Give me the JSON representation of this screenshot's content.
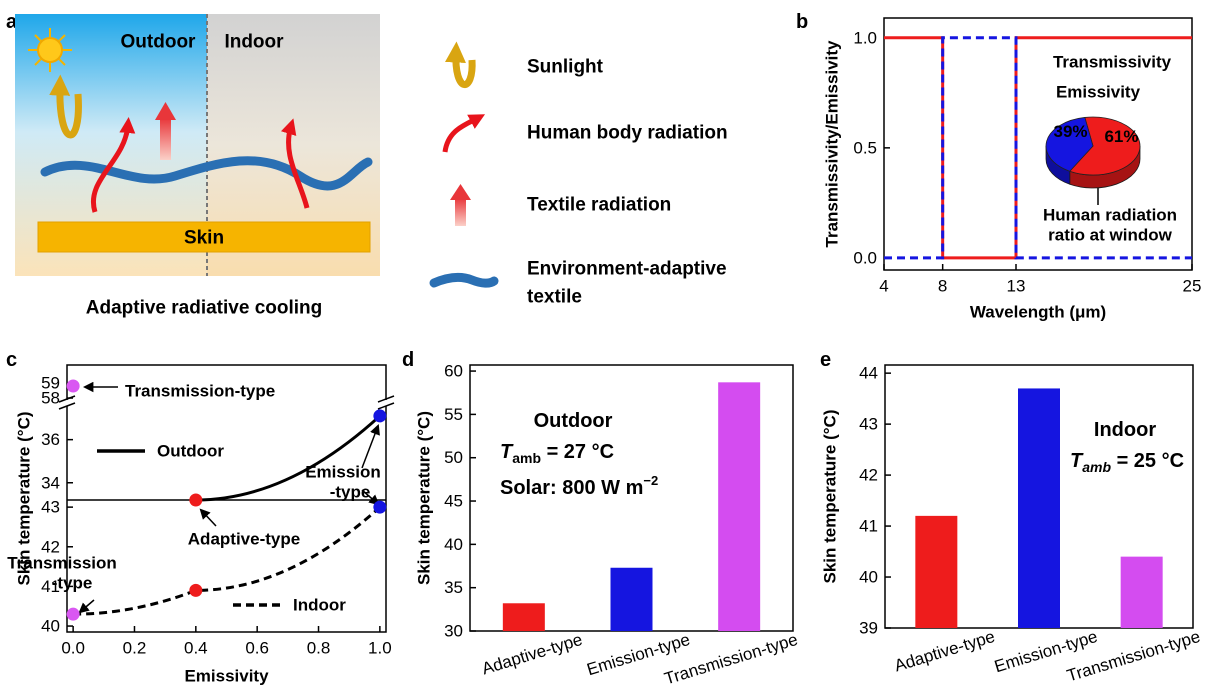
{
  "schematic": {
    "label": "a",
    "outdoor": "Outdoor",
    "indoor": "Indoor",
    "skin": "Skin",
    "caption": "Adaptive radiative cooling",
    "legend": [
      [
        "Sunlight"
      ],
      [
        "Human body radiation"
      ],
      [
        "Textile radiation"
      ],
      [
        "Environment-adaptive",
        "textile"
      ]
    ]
  },
  "chart_data": [
    {
      "type": "line",
      "label": "b",
      "xlabel": "Wavelength (μm)",
      "ylabel": "Transmissivity/Emissivity",
      "x": [
        4,
        8,
        8,
        13,
        13,
        25
      ],
      "xlim": [
        4,
        25
      ],
      "ylim": [
        -0.055,
        1.09
      ],
      "xticks": [
        4,
        8,
        13,
        25
      ],
      "yticks": [
        {
          "value": 0,
          "label": "0.0"
        },
        {
          "value": 0.5,
          "label": "0.5"
        },
        {
          "value": 1,
          "label": "1.0"
        }
      ],
      "smooth": false,
      "series": [
        {
          "name": "Transmissivity",
          "color": "#ee1c1c",
          "dash": false,
          "values": [
            1,
            1,
            0,
            0,
            1,
            1
          ]
        },
        {
          "name": "Emissivity",
          "color": "#1515e0",
          "dash": true,
          "values": [
            0,
            0,
            1,
            1,
            0,
            0
          ]
        }
      ],
      "inset": {
        "type": "pie",
        "values": [
          61,
          39
        ],
        "value_labels": [
          "61%",
          "39%"
        ],
        "colors": [
          "#ee1c1c",
          "#1515e0"
        ],
        "annotation": [
          "Human radiation",
          "ratio at window"
        ]
      }
    },
    {
      "type": "line",
      "label": "c",
      "xlabel": "Emissivity",
      "ylabel": "Skin temperature (°C)",
      "xlim": [
        -0.02,
        1.02
      ],
      "xticks": [
        {
          "value": 0,
          "label": "0.0"
        },
        {
          "value": 0.2,
          "label": "0.2"
        },
        {
          "value": 0.4,
          "label": "0.4"
        },
        {
          "value": 0.6,
          "label": "0.6"
        },
        {
          "value": 0.8,
          "label": "0.8"
        },
        {
          "value": 1,
          "label": "1.0"
        }
      ],
      "y_segments": [
        {
          "ylim": [
            57.67,
            60.2
          ],
          "yticks": [
            58,
            59
          ]
        },
        {
          "ylim": [
            33.2,
            37.7
          ],
          "yticks": [
            34,
            36
          ]
        },
        {
          "ylim": [
            39.85,
            43.18
          ],
          "yticks": [
            40,
            41,
            42,
            43
          ]
        }
      ],
      "smooth": true,
      "series": [
        {
          "name": "Outdoor",
          "color": "#000000",
          "dash": false,
          "x": [
            0,
            0.4,
            1
          ],
          "values": [
            58.8,
            33.2,
            37.1
          ],
          "marker_colors": [
            "#d957f2",
            "#ee1c1c",
            "#1515e0"
          ]
        },
        {
          "name": "Indoor",
          "color": "#000000",
          "dash": true,
          "x": [
            0,
            0.4,
            1
          ],
          "values": [
            40.3,
            40.9,
            43.0
          ],
          "marker_colors": [
            "#d957f2",
            "#ee1c1c",
            "#1515e0"
          ]
        }
      ],
      "annotations": [
        {
          "text": [
            "Transmission-type"
          ],
          "color": "#d957f2"
        },
        {
          "text": [
            "Emission",
            "-type"
          ],
          "color": "#1515e0"
        },
        {
          "text": [
            "Adaptive-type"
          ],
          "color": "#ee1c1c"
        },
        {
          "text": [
            "Transmission",
            "-type"
          ],
          "color": "#d957f2"
        }
      ]
    },
    {
      "type": "bar",
      "label": "d",
      "ylabel": "Skin temperature (°C)",
      "categories": [
        "Adaptive-type",
        "Emission-type",
        "Transmission-type"
      ],
      "values": [
        33.2,
        37.3,
        58.7
      ],
      "colors": [
        "#ee1c1c",
        "#1515e0",
        "#d44cf0"
      ],
      "ylim": [
        30,
        60.7
      ],
      "yticks": [
        30,
        35,
        40,
        45,
        50,
        55,
        60
      ],
      "annotations": [
        [
          "Outdoor"
        ],
        [
          "T",
          "amb",
          " = 27 °C"
        ],
        [
          "Solar: 800 W m",
          "−2"
        ]
      ]
    },
    {
      "type": "bar",
      "label": "e",
      "ylabel": "Skin temperature (°C)",
      "categories": [
        "Adaptive-type",
        "Emission-type",
        "Transmission-type"
      ],
      "values": [
        41.2,
        43.7,
        40.4
      ],
      "colors": [
        "#ee1c1c",
        "#1515e0",
        "#d44cf0"
      ],
      "ylim": [
        39,
        44.16
      ],
      "yticks": [
        39,
        40,
        41,
        42,
        43,
        44
      ],
      "annotations": [
        [
          "Indoor"
        ],
        [
          "T",
          "amb",
          " = 25 °C"
        ]
      ]
    }
  ]
}
